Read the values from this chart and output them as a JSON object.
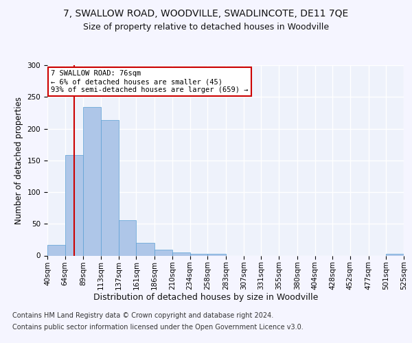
{
  "title1": "7, SWALLOW ROAD, WOODVILLE, SWADLINCOTE, DE11 7QE",
  "title2": "Size of property relative to detached houses in Woodville",
  "xlabel": "Distribution of detached houses by size in Woodville",
  "ylabel": "Number of detached properties",
  "footnote1": "Contains HM Land Registry data © Crown copyright and database right 2024.",
  "footnote2": "Contains public sector information licensed under the Open Government Licence v3.0.",
  "bar_edges": [
    40,
    64,
    89,
    113,
    137,
    161,
    186,
    210,
    234,
    258,
    283,
    307,
    331,
    355,
    380,
    404,
    428,
    452,
    477,
    501,
    525
  ],
  "bar_heights": [
    17,
    158,
    234,
    214,
    56,
    20,
    9,
    5,
    3,
    3,
    0,
    0,
    0,
    0,
    0,
    0,
    0,
    0,
    0,
    3
  ],
  "bar_color": "#aec6e8",
  "bar_edgecolor": "#5a9fd4",
  "property_size": 76,
  "vline_color": "#cc0000",
  "annotation_line1": "7 SWALLOW ROAD: 76sqm",
  "annotation_line2": "← 6% of detached houses are smaller (45)",
  "annotation_line3": "93% of semi-detached houses are larger (659) →",
  "annotation_box_color": "#ffffff",
  "annotation_box_edgecolor": "#cc0000",
  "ylim": [
    0,
    300
  ],
  "yticks": [
    0,
    50,
    100,
    150,
    200,
    250,
    300
  ],
  "background_color": "#eef2fb",
  "grid_color": "#ffffff",
  "title1_fontsize": 10,
  "title2_fontsize": 9,
  "xlabel_fontsize": 9,
  "ylabel_fontsize": 8.5,
  "tick_fontsize": 7.5,
  "footnote_fontsize": 7
}
